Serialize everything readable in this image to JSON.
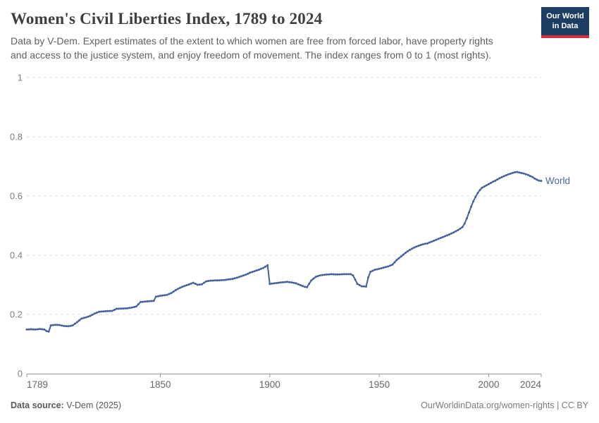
{
  "header": {
    "title": "Women's Civil Liberties Index, 1789 to 2024",
    "subtitle_lines": [
      "Data by V-Dem. Expert estimates of the extent to which women are free from forced labor, have property rights",
      "and access to the justice system, and enjoy freedom of movement. The index ranges from 0 to 1 (most rights)."
    ]
  },
  "logo": {
    "line1": "Our World",
    "line2": "in Data",
    "bg_color": "#1d3d63",
    "accent_color": "#cf323e"
  },
  "chart_data": {
    "type": "line",
    "title": "Women's Civil Liberties Index, 1789 to 2024",
    "xlabel": "",
    "ylabel": "",
    "xlim": [
      1789,
      2024
    ],
    "ylim": [
      0,
      1
    ],
    "x_ticks": [
      1789,
      1850,
      1900,
      1950,
      2000,
      2024
    ],
    "y_ticks": [
      0,
      0.2,
      0.4,
      0.6,
      0.8,
      1
    ],
    "grid": "dashed-horizontal",
    "grid_color": "#dddddd",
    "axis_color": "#999999",
    "x_tick_label_color": "#666666",
    "y_tick_label_color": "#808080",
    "legend_position": "end-of-line",
    "series": [
      {
        "name": "World",
        "color": "#45619b",
        "label_color": "#4c6a9c",
        "points": [
          [
            1789,
            0.149
          ],
          [
            1791,
            0.15
          ],
          [
            1793,
            0.149
          ],
          [
            1795,
            0.151
          ],
          [
            1797,
            0.149
          ],
          [
            1798,
            0.144
          ],
          [
            1799,
            0.142
          ],
          [
            1800,
            0.163
          ],
          [
            1802,
            0.165
          ],
          [
            1804,
            0.164
          ],
          [
            1806,
            0.161
          ],
          [
            1808,
            0.16
          ],
          [
            1810,
            0.163
          ],
          [
            1812,
            0.174
          ],
          [
            1814,
            0.186
          ],
          [
            1816,
            0.19
          ],
          [
            1818,
            0.195
          ],
          [
            1820,
            0.203
          ],
          [
            1822,
            0.209
          ],
          [
            1825,
            0.211
          ],
          [
            1828,
            0.212
          ],
          [
            1830,
            0.219
          ],
          [
            1833,
            0.22
          ],
          [
            1835,
            0.221
          ],
          [
            1837,
            0.223
          ],
          [
            1839,
            0.227
          ],
          [
            1841,
            0.242
          ],
          [
            1844,
            0.244
          ],
          [
            1847,
            0.246
          ],
          [
            1848,
            0.26
          ],
          [
            1850,
            0.263
          ],
          [
            1853,
            0.266
          ],
          [
            1855,
            0.272
          ],
          [
            1857,
            0.282
          ],
          [
            1859,
            0.29
          ],
          [
            1861,
            0.296
          ],
          [
            1863,
            0.301
          ],
          [
            1865,
            0.307
          ],
          [
            1867,
            0.3
          ],
          [
            1869,
            0.302
          ],
          [
            1871,
            0.312
          ],
          [
            1873,
            0.314
          ],
          [
            1876,
            0.315
          ],
          [
            1879,
            0.316
          ],
          [
            1881,
            0.318
          ],
          [
            1883,
            0.32
          ],
          [
            1885,
            0.324
          ],
          [
            1887,
            0.329
          ],
          [
            1889,
            0.334
          ],
          [
            1891,
            0.341
          ],
          [
            1893,
            0.346
          ],
          [
            1895,
            0.351
          ],
          [
            1897,
            0.357
          ],
          [
            1899,
            0.366
          ],
          [
            1900,
            0.303
          ],
          [
            1902,
            0.305
          ],
          [
            1905,
            0.308
          ],
          [
            1908,
            0.31
          ],
          [
            1910,
            0.308
          ],
          [
            1912,
            0.305
          ],
          [
            1914,
            0.299
          ],
          [
            1916,
            0.293
          ],
          [
            1917,
            0.292
          ],
          [
            1919,
            0.315
          ],
          [
            1921,
            0.327
          ],
          [
            1923,
            0.332
          ],
          [
            1925,
            0.334
          ],
          [
            1928,
            0.336
          ],
          [
            1931,
            0.335
          ],
          [
            1934,
            0.336
          ],
          [
            1937,
            0.336
          ],
          [
            1938,
            0.332
          ],
          [
            1940,
            0.303
          ],
          [
            1942,
            0.295
          ],
          [
            1944,
            0.294
          ],
          [
            1945,
            0.325
          ],
          [
            1946,
            0.344
          ],
          [
            1948,
            0.351
          ],
          [
            1950,
            0.354
          ],
          [
            1952,
            0.358
          ],
          [
            1954,
            0.362
          ],
          [
            1956,
            0.368
          ],
          [
            1958,
            0.384
          ],
          [
            1960,
            0.396
          ],
          [
            1962,
            0.408
          ],
          [
            1964,
            0.418
          ],
          [
            1966,
            0.426
          ],
          [
            1968,
            0.432
          ],
          [
            1970,
            0.437
          ],
          [
            1972,
            0.44
          ],
          [
            1974,
            0.446
          ],
          [
            1976,
            0.452
          ],
          [
            1978,
            0.458
          ],
          [
            1980,
            0.464
          ],
          [
            1982,
            0.47
          ],
          [
            1984,
            0.477
          ],
          [
            1986,
            0.485
          ],
          [
            1988,
            0.495
          ],
          [
            1989,
            0.507
          ],
          [
            1990,
            0.524
          ],
          [
            1991,
            0.544
          ],
          [
            1992,
            0.564
          ],
          [
            1993,
            0.582
          ],
          [
            1994,
            0.597
          ],
          [
            1995,
            0.61
          ],
          [
            1996,
            0.62
          ],
          [
            1997,
            0.628
          ],
          [
            1999,
            0.636
          ],
          [
            2001,
            0.644
          ],
          [
            2003,
            0.652
          ],
          [
            2005,
            0.66
          ],
          [
            2007,
            0.667
          ],
          [
            2009,
            0.673
          ],
          [
            2011,
            0.678
          ],
          [
            2012,
            0.68
          ],
          [
            2013,
            0.681
          ],
          [
            2014,
            0.679
          ],
          [
            2016,
            0.676
          ],
          [
            2018,
            0.671
          ],
          [
            2020,
            0.664
          ],
          [
            2021,
            0.659
          ],
          [
            2022,
            0.655
          ],
          [
            2023,
            0.652
          ],
          [
            2024,
            0.651
          ]
        ]
      }
    ]
  },
  "footer": {
    "source_label": "Data source:",
    "source_value": " V-Dem (2025)",
    "credit": "OurWorldinData.org/women-rights | CC BY"
  }
}
